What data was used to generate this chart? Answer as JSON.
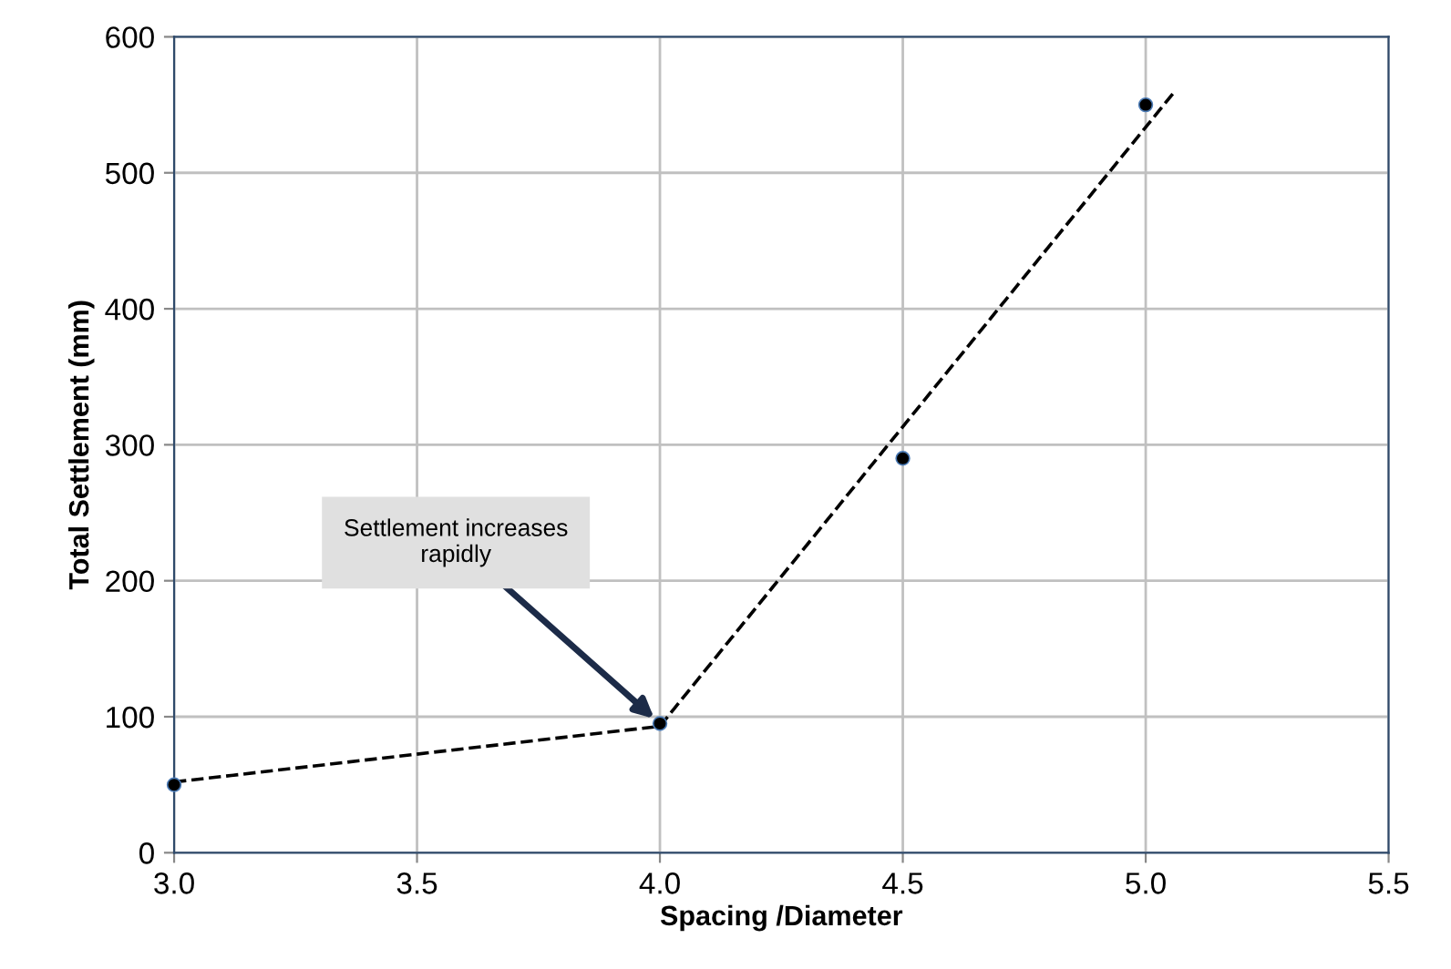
{
  "chart_data": {
    "type": "scatter",
    "xlabel": "Spacing /Diameter",
    "ylabel": "Total Settlement (mm)",
    "x": [
      3.0,
      4.0,
      4.5,
      5.0
    ],
    "series": [
      {
        "color": "#000000",
        "marker": "circle",
        "values": [
          50,
          95,
          290,
          550
        ]
      },
      {
        "type": "line",
        "color": "#000000",
        "line_style": "dashed",
        "marker": "none",
        "x": [
          3.0,
          4.0
        ],
        "values": [
          52,
          93
        ]
      },
      {
        "type": "line",
        "color": "#000000",
        "line_style": "dashed",
        "marker": "none",
        "x": [
          4.0,
          5.06
        ],
        "values": [
          93,
          560
        ]
      }
    ],
    "xlim": [
      3.0,
      5.5
    ],
    "xticks": [
      {
        "value": 3.0,
        "label": "3.0"
      },
      {
        "value": 3.5,
        "label": "3.5"
      },
      {
        "value": 4.0,
        "label": "4.0"
      },
      {
        "value": 4.5,
        "label": "4.5"
      },
      {
        "value": 5.0,
        "label": "5.0"
      },
      {
        "value": 5.5,
        "label": "5.5"
      }
    ],
    "ylim": [
      0,
      600
    ],
    "yticks": [
      0,
      100,
      200,
      300,
      400,
      500,
      600
    ],
    "grid": true,
    "annotations": [
      {
        "text": "Settlement increases\nrapidly",
        "x": 4.0,
        "y": 95
      }
    ]
  }
}
